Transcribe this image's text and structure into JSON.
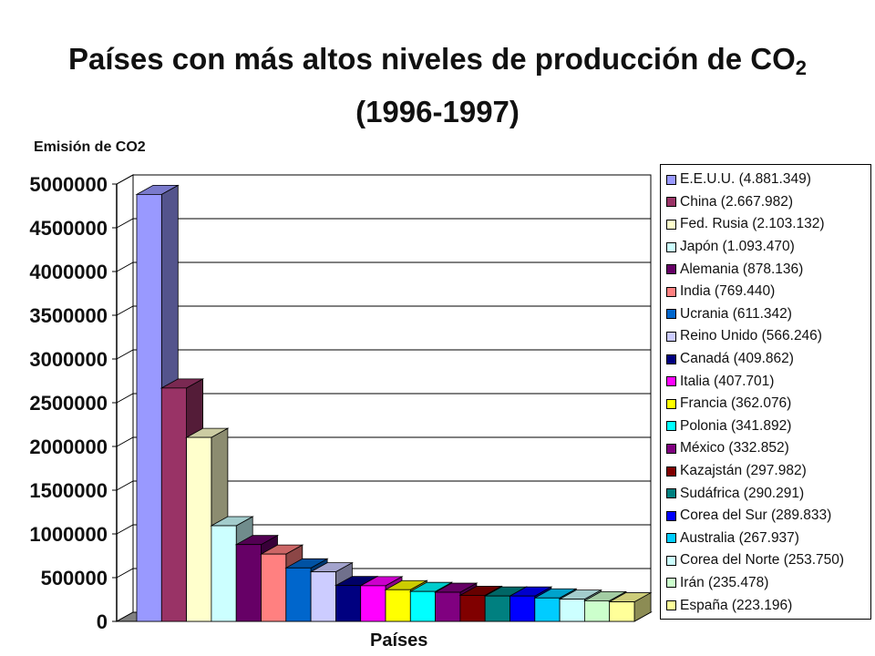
{
  "chart_data": {
    "type": "bar",
    "title": "Países con más altos niveles de producción de CO",
    "title_subscript": "2",
    "subtitle": "(1996-1997)",
    "ylabel": "Emisión de CO2",
    "xlabel": "Países",
    "ylim": [
      0,
      5000000
    ],
    "yticks": [
      "5000000",
      "4500000",
      "4000000",
      "3500000",
      "3000000",
      "2500000",
      "2000000",
      "1500000",
      "1000000",
      "500000",
      "0"
    ],
    "grid": true,
    "legend_position": "right",
    "categories": [
      "E.E.U.U.",
      "China",
      "Fed. Rusia",
      "Japón",
      "Alemania",
      "India",
      "Ucrania",
      "Reino Unido",
      "Canadá",
      "Italia",
      "Francia",
      "Polonia",
      "México",
      "Kazajstán",
      "Sudáfrica",
      "Corea del Sur",
      "Australia",
      "Corea del Norte",
      "Irán",
      "España"
    ],
    "values": [
      4881349,
      2667982,
      2103132,
      1093470,
      878136,
      769440,
      611342,
      566246,
      409862,
      407701,
      362076,
      341892,
      332852,
      297982,
      290291,
      289833,
      267937,
      253750,
      235478,
      223196
    ],
    "colors": [
      "#9999ff",
      "#993366",
      "#ffffcc",
      "#ccffff",
      "#660066",
      "#ff8080",
      "#0066cc",
      "#ccccff",
      "#000080",
      "#ff00ff",
      "#ffff00",
      "#00ffff",
      "#800080",
      "#800000",
      "#008080",
      "#0000ff",
      "#00ccff",
      "#ccffff",
      "#ccffcc",
      "#ffff99"
    ],
    "legend": [
      "E.E.U.U. (4.881.349)",
      "China (2.667.982)",
      "Fed. Rusia (2.103.132)",
      "Japón (1.093.470)",
      "Alemania (878.136)",
      "India (769.440)",
      "Ucrania (611.342)",
      "Reino Unido (566.246)",
      "Canadá (409.862)",
      "Italia (407.701)",
      "Francia (362.076)",
      "Polonia (341.892)",
      "México (332.852)",
      "Kazajstán (297.982)",
      "Sudáfrica (290.291)",
      "Corea del Sur (289.833)",
      "Australia (267.937)",
      "Corea del Norte (253.750)",
      "Irán (235.478)",
      "España (223.196)"
    ]
  }
}
